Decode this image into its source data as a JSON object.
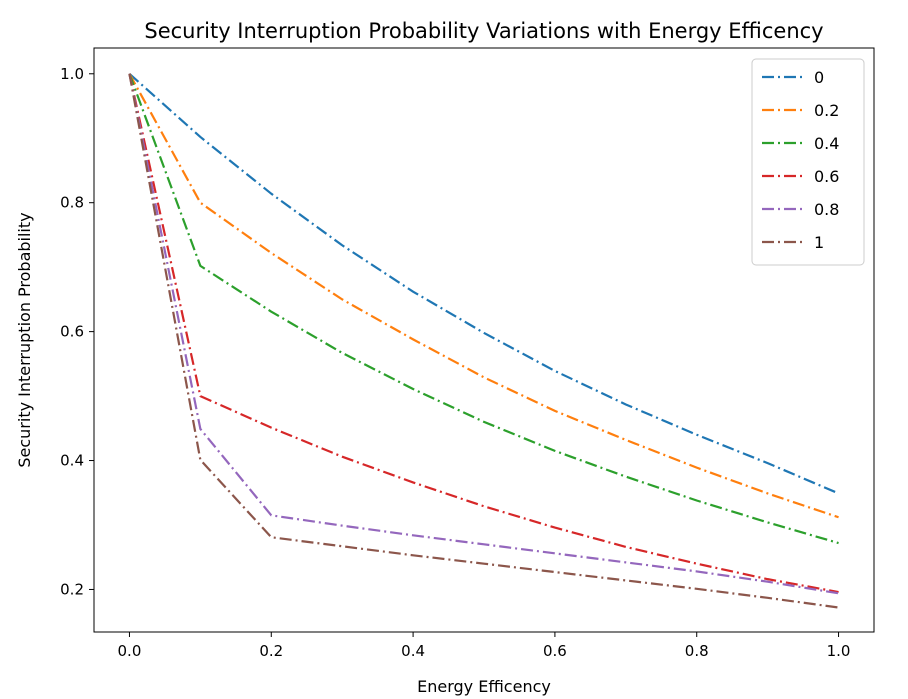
{
  "chart_data": {
    "type": "line",
    "title": "Security Interruption Probability Variations with Energy Efficency",
    "xlabel": "Energy Efficency",
    "ylabel": "Security Interruption Probability",
    "x": [
      0.0,
      0.1,
      0.2,
      0.3,
      0.4,
      0.5,
      0.6,
      0.7,
      0.8,
      0.9,
      1.0
    ],
    "xlim": [
      -0.05,
      1.05
    ],
    "ylim": [
      0.134,
      1.04
    ],
    "xticks": [
      0.0,
      0.2,
      0.4,
      0.6,
      0.8,
      1.0
    ],
    "xtick_labels": [
      "0.0",
      "0.2",
      "0.4",
      "0.6",
      "0.8",
      "1.0"
    ],
    "yticks": [
      0.2,
      0.4,
      0.6,
      0.8,
      1.0
    ],
    "ytick_labels": [
      "0.2",
      "0.4",
      "0.6",
      "0.8",
      "1.0"
    ],
    "line_style": "dash-dot",
    "grid": false,
    "legend_position": "top-right",
    "series": [
      {
        "name": "0",
        "color": "#1f77b4",
        "values": [
          1.0,
          0.902,
          0.814,
          0.734,
          0.662,
          0.598,
          0.539,
          0.487,
          0.44,
          0.396,
          0.349
        ]
      },
      {
        "name": "0.2",
        "color": "#ff7f0e",
        "values": [
          1.0,
          0.8,
          0.722,
          0.65,
          0.588,
          0.529,
          0.477,
          0.432,
          0.389,
          0.349,
          0.312
        ]
      },
      {
        "name": "0.4",
        "color": "#2ca02c",
        "values": [
          1.0,
          0.702,
          0.631,
          0.567,
          0.511,
          0.46,
          0.415,
          0.375,
          0.338,
          0.304,
          0.272
        ]
      },
      {
        "name": "0.6",
        "color": "#d62728",
        "values": [
          1.0,
          0.5,
          0.451,
          0.406,
          0.366,
          0.329,
          0.296,
          0.266,
          0.24,
          0.216,
          0.196
        ]
      },
      {
        "name": "0.8",
        "color": "#9467bd",
        "values": [
          1.0,
          0.449,
          0.315,
          0.299,
          0.284,
          0.27,
          0.256,
          0.242,
          0.228,
          0.212,
          0.194
        ]
      },
      {
        "name": "1",
        "color": "#8c564b",
        "values": [
          1.0,
          0.401,
          0.281,
          0.267,
          0.253,
          0.24,
          0.227,
          0.214,
          0.201,
          0.187,
          0.172
        ]
      }
    ]
  }
}
